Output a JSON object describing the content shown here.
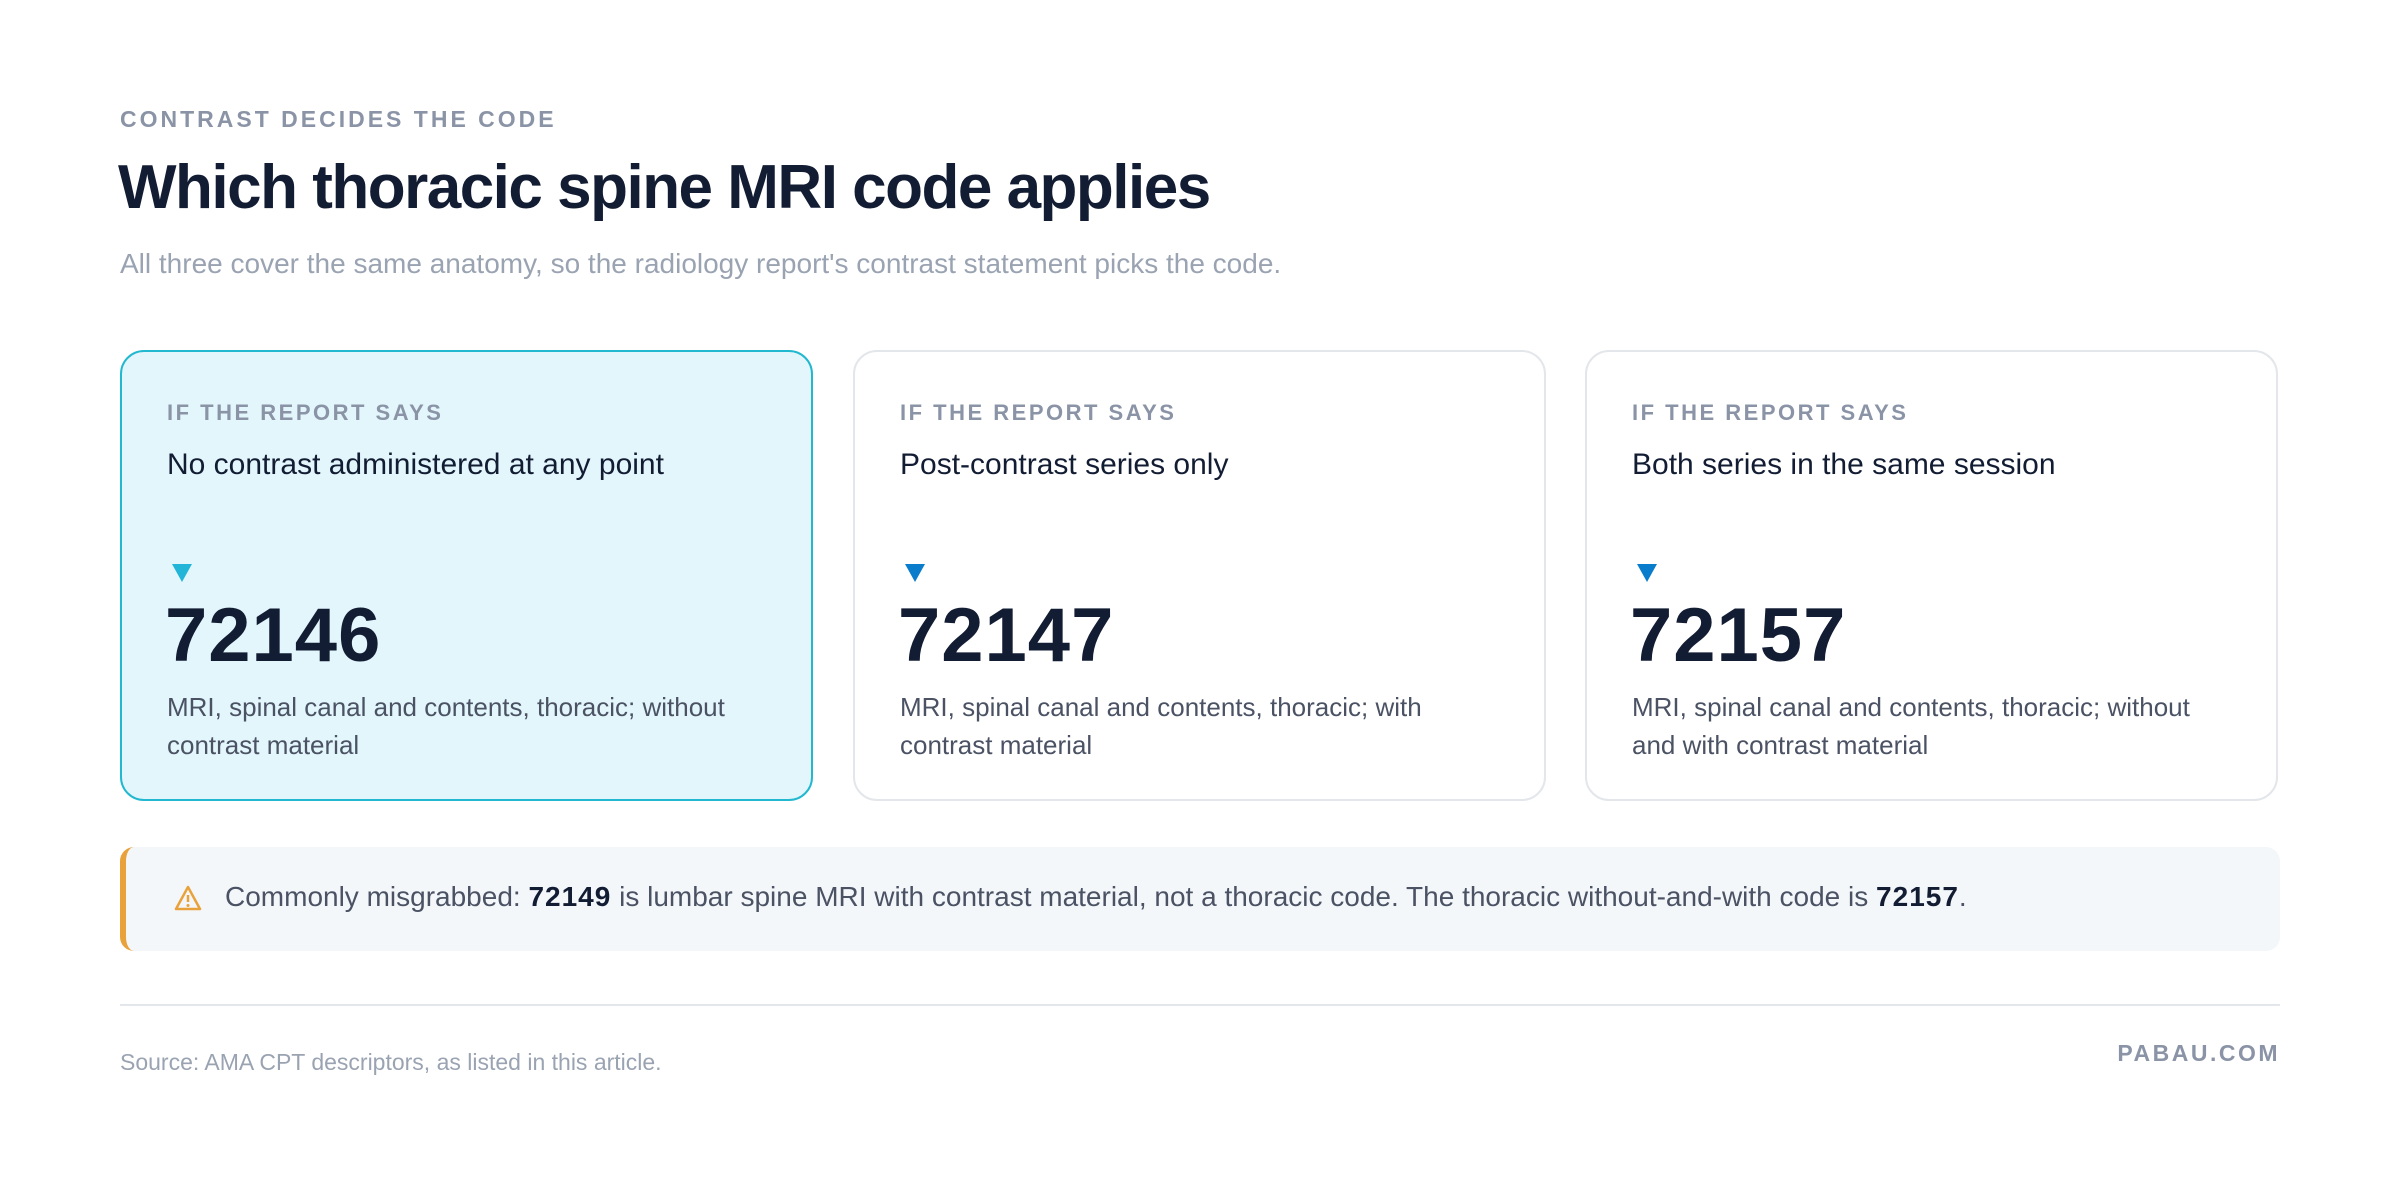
{
  "header": {
    "eyebrow": "CONTRAST DECIDES THE CODE",
    "title": "Which thoracic spine MRI code applies",
    "subtitle": "All three cover the same anatomy, so the radiology report's contrast statement picks the code."
  },
  "cards": [
    {
      "label": "IF THE REPORT SAYS",
      "condition": "No contrast administered at any point",
      "code": "72146",
      "description": "MRI, spinal canal and contents, thoracic; without contrast material"
    },
    {
      "label": "IF THE REPORT SAYS",
      "condition": "Post-contrast series only",
      "code": "72147",
      "description": "MRI, spinal canal and contents, thoracic; with contrast material"
    },
    {
      "label": "IF THE REPORT SAYS",
      "condition": "Both series in the same session",
      "code": "72157",
      "description": "MRI, spinal canal and contents, thoracic; without and with contrast material"
    }
  ],
  "note": {
    "text_1": "Commonly misgrabbed:",
    "code_1": "72149",
    "text_2": "is lumbar spine MRI with contrast material, not a thoracic code. The thoracic without-and-with code is",
    "code_2": "72157",
    "text_3": "."
  },
  "footer": {
    "source": "Source: AMA CPT descriptors, as listed in this article.",
    "brand": "PABAU.COM"
  }
}
